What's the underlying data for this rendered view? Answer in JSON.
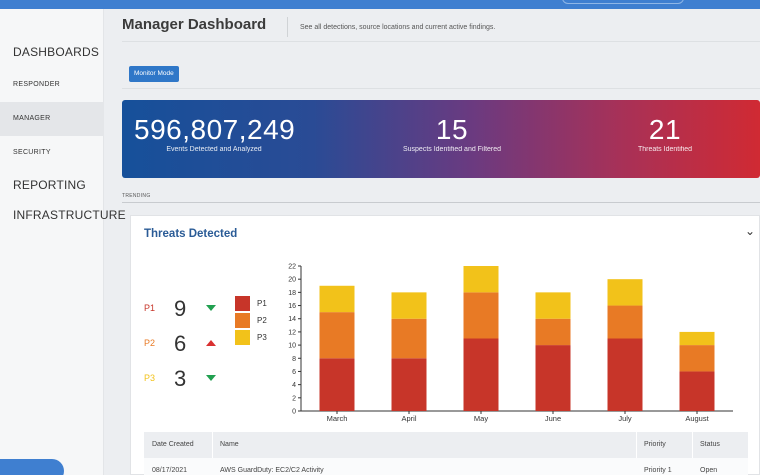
{
  "sidebar": {
    "items": [
      {
        "label": "DASHBOARDS"
      },
      {
        "label": "RESPONDER"
      },
      {
        "label": "MANAGER"
      },
      {
        "label": "SECURITY"
      },
      {
        "label": "REPORTING"
      },
      {
        "label": "INFRASTRUCTURE"
      }
    ]
  },
  "header": {
    "title": "Manager Dashboard",
    "subtitle": "See all detections, source locations and current active findings."
  },
  "mode_button": "Monitor Mode",
  "banner": {
    "stats": [
      {
        "value": "596,807,249",
        "label": "Events Detected and Analyzed"
      },
      {
        "value": "15",
        "label": "Suspects Identified and Filtered"
      },
      {
        "value": "21",
        "label": "Threats Identified"
      }
    ]
  },
  "trending_label": "TRENDING",
  "threats_card": {
    "title": "Threats Detected",
    "priorities": [
      {
        "label": "P1",
        "count": "9",
        "trend": "down",
        "color": "#c73529"
      },
      {
        "label": "P2",
        "count": "6",
        "trend": "up",
        "color": "#e87a25"
      },
      {
        "label": "P3",
        "count": "3",
        "trend": "down",
        "color": "#f2c21a"
      }
    ],
    "legend": [
      {
        "label": "P1",
        "color": "#c73529"
      },
      {
        "label": "P2",
        "color": "#e87a25"
      },
      {
        "label": "P3",
        "color": "#f2c21a"
      }
    ]
  },
  "chart_data": {
    "type": "bar",
    "stacked": true,
    "categories": [
      "March",
      "April",
      "May",
      "June",
      "July",
      "August"
    ],
    "series": [
      {
        "name": "P1",
        "color": "#c73529",
        "values": [
          8,
          8,
          11,
          10,
          11,
          6
        ]
      },
      {
        "name": "P2",
        "color": "#e87a25",
        "values": [
          7,
          6,
          7,
          4,
          5,
          4
        ]
      },
      {
        "name": "P3",
        "color": "#f2c21a",
        "values": [
          4,
          4,
          4,
          4,
          4,
          2
        ]
      }
    ],
    "ylim": [
      0,
      22
    ],
    "yticks": [
      0,
      2,
      4,
      6,
      8,
      10,
      12,
      14,
      16,
      18,
      20,
      22
    ]
  },
  "table": {
    "headers": [
      "Date Created",
      "Name",
      "Priority",
      "Status"
    ],
    "rows": [
      [
        "08/17/2021",
        "AWS GuardDuty: EC2/C2 Activity",
        "Priority 1",
        "Open"
      ]
    ]
  }
}
